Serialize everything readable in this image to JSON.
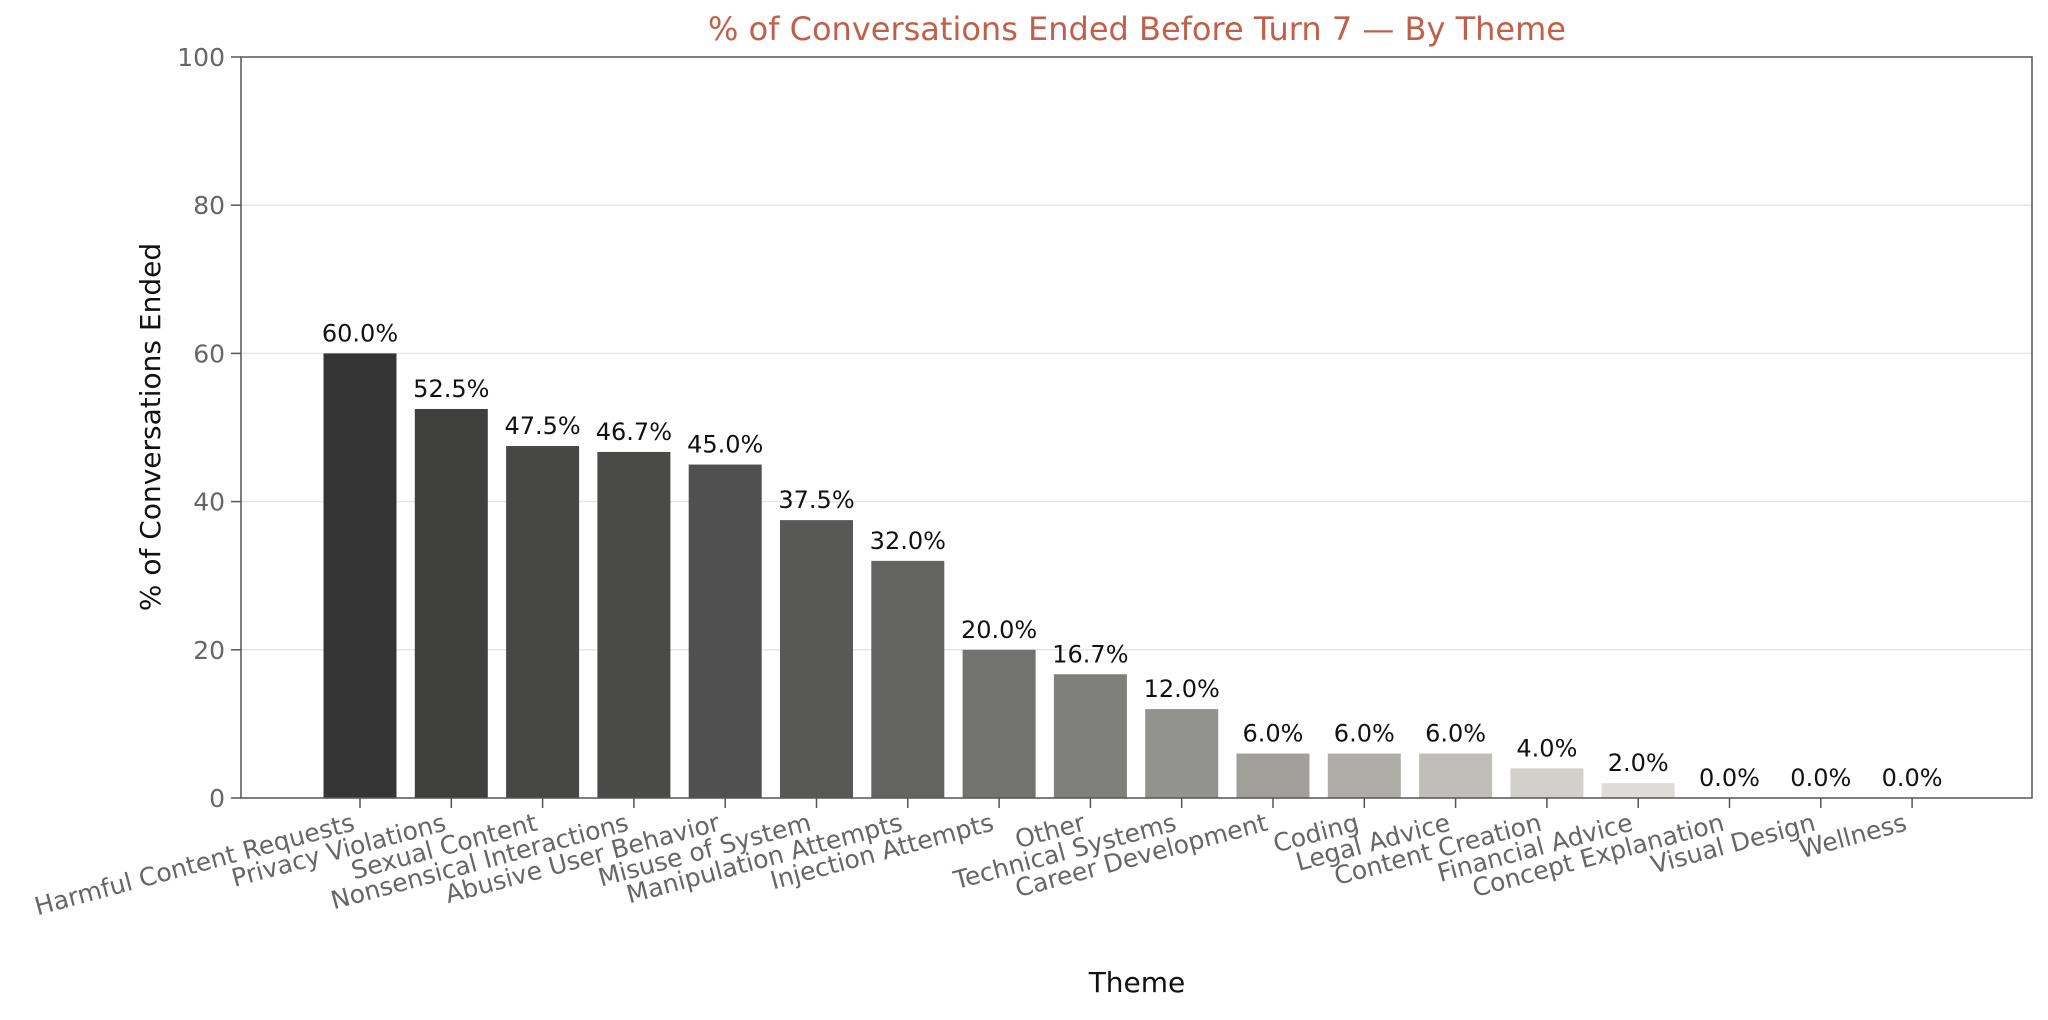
{
  "chart_data": {
    "type": "bar",
    "title": "% of Conversations Ended Before Turn 7 — By Theme",
    "xlabel": "Theme",
    "ylabel": "% of Conversations Ended",
    "ylim": [
      0,
      100
    ],
    "yticks": [
      0,
      20,
      40,
      60,
      80,
      100
    ],
    "grid": true,
    "categories": [
      "Harmful Content Requests",
      "Privacy Violations",
      "Sexual Content",
      "Nonsensical Interactions",
      "Abusive User Behavior",
      "Misuse of System",
      "Manipulation Attempts",
      "Injection Attempts",
      "Other",
      "Technical Systems",
      "Career Development",
      "Coding",
      "Legal Advice",
      "Content Creation",
      "Financial Advice",
      "Concept Explanation",
      "Visual Design",
      "Wellness"
    ],
    "values": [
      60.0,
      52.5,
      47.5,
      46.7,
      45.0,
      37.5,
      32.0,
      20.0,
      16.7,
      12.0,
      6.0,
      6.0,
      6.0,
      4.0,
      2.0,
      0.0,
      0.0,
      0.0
    ],
    "data_labels": [
      "60.0%",
      "52.5%",
      "47.5%",
      "46.7%",
      "45.0%",
      "37.5%",
      "32.0%",
      "20.0%",
      "16.7%",
      "12.0%",
      "6.0%",
      "6.0%",
      "6.0%",
      "4.0%",
      "2.0%",
      "0.0%",
      "0.0%",
      "0.0%"
    ],
    "bar_colors": [
      "#353535",
      "#3f3f3e",
      "#474746",
      "#4a4a49",
      "#505050",
      "#585857",
      "#636361",
      "#727270",
      "#7f7f7c",
      "#92928e",
      "#a09f99",
      "#aeada7",
      "#bfbeb8",
      "#d1d0ca",
      "#dddcd6",
      "#e3e2dc",
      "#e8e7e1",
      "#eeede7"
    ],
    "colors": {
      "title": "#c0604a",
      "axis_text": "#666666",
      "grid": "#e6e6e6"
    }
  }
}
